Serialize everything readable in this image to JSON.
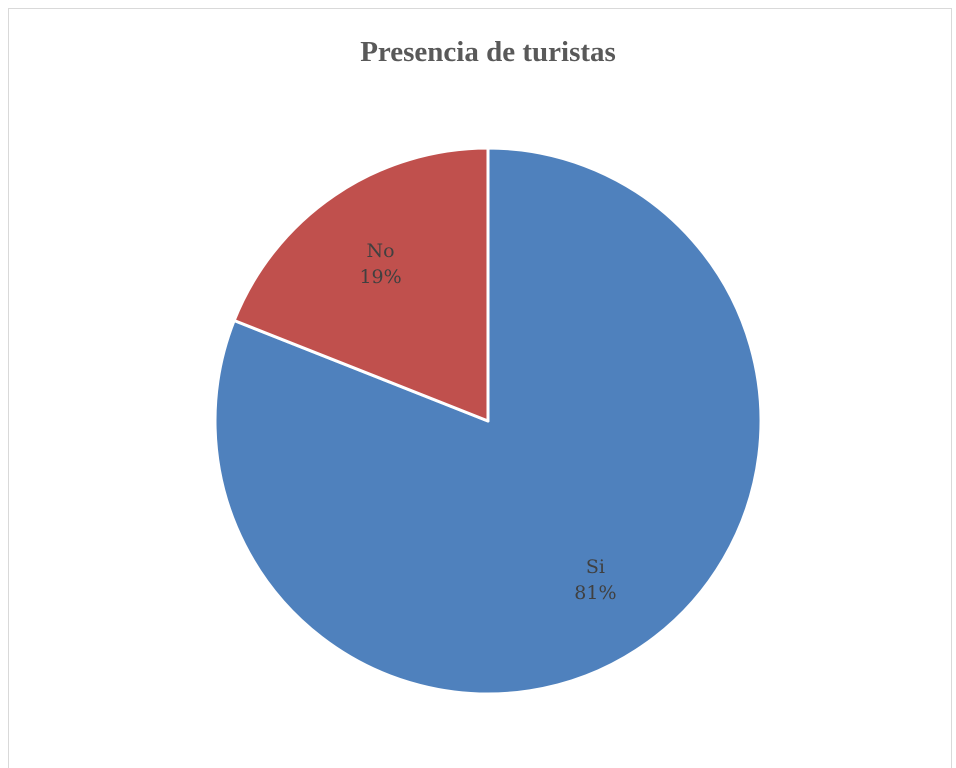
{
  "chart_data": {
    "type": "pie",
    "title": "Presencia de turistas",
    "slices": [
      {
        "label": "Si",
        "value": 81,
        "percent_label": "81%",
        "color": "#4F81BD"
      },
      {
        "label": "No",
        "value": 19,
        "percent_label": "19%",
        "color": "#C0504D"
      }
    ],
    "start_angle": "12 o'clock",
    "direction": "clockwise",
    "legend": "none",
    "data_labels": "inside"
  }
}
